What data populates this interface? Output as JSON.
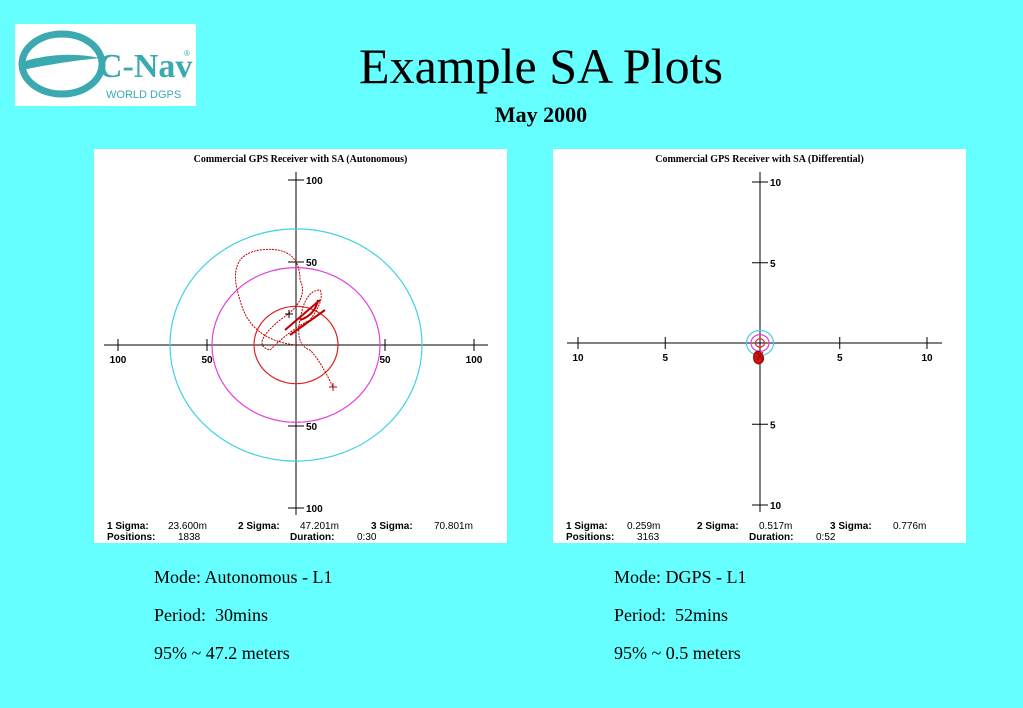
{
  "logo": {
    "name": "C-Nav",
    "mark": "®",
    "tagline": "WORLD DGPS"
  },
  "header": {
    "title": "Example SA Plots",
    "subtitle": "May 2000"
  },
  "plots": [
    {
      "title": "Commercial GPS Receiver with SA (Autonomous)",
      "xticks": [
        {
          "value": -100,
          "label": "100"
        },
        {
          "value": -50,
          "label": "50"
        },
        50,
        100
      ],
      "yticks": [
        {
          "value": -100,
          "label": "100"
        },
        {
          "value": -50,
          "label": "50"
        },
        50,
        100
      ],
      "stats": [
        {
          "label": "1 Sigma:",
          "value": "23.600m",
          "color": "#e02020"
        },
        {
          "label": "2 Sigma:",
          "value": "47.201m",
          "color": "#e040e0"
        },
        {
          "label": "3 Sigma:",
          "value": "70.801m",
          "color": "#40d0e8"
        }
      ],
      "counts": [
        {
          "label": "Positions:",
          "value": "1838"
        },
        {
          "label": "Duration:",
          "value": "0:30"
        }
      ],
      "notes": [
        "Mode: Autonomous - L1",
        "Period:  30mins",
        "95% ~ 47.2 meters"
      ]
    },
    {
      "title": "Commercial GPS Receiver with SA (Differential)",
      "xticks": [
        {
          "value": -10,
          "label": "10"
        },
        {
          "value": -5,
          "label": "5"
        },
        5,
        10
      ],
      "yticks": [
        {
          "value": -10,
          "label": "10"
        },
        {
          "value": -5,
          "label": "5"
        },
        5,
        10
      ],
      "stats": [
        {
          "label": "1 Sigma:",
          "value": "0.259m",
          "color": "#e02020"
        },
        {
          "label": "2 Sigma:",
          "value": "0.517m",
          "color": "#e040e0"
        },
        {
          "label": "3 Sigma:",
          "value": "0.776m",
          "color": "#40d0e8"
        }
      ],
      "counts": [
        {
          "label": "Positions:",
          "value": "3163"
        },
        {
          "label": "Duration:",
          "value": "0:52"
        }
      ],
      "notes": [
        "Mode: DGPS - L1",
        "Period:  52mins",
        "95% ~ 0.5 meters"
      ]
    }
  ]
}
